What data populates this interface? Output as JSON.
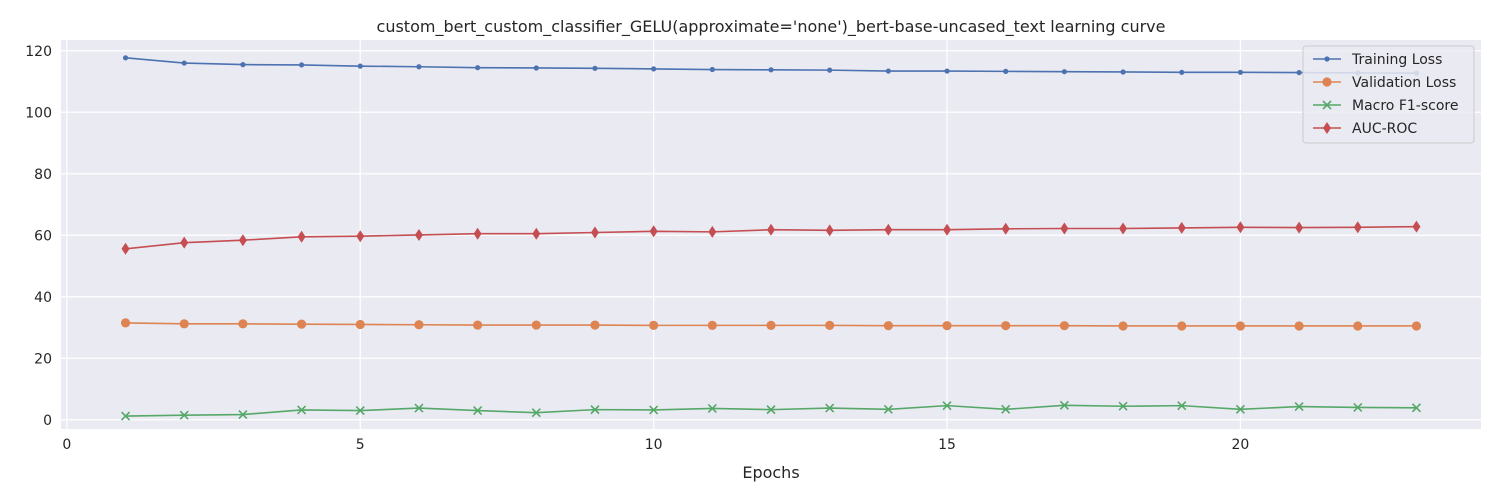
{
  "chart_data": {
    "type": "line",
    "title": "custom_bert_custom_classifier_GELU(approximate='none')_bert-base-uncased_text learning curve",
    "xlabel": "Epochs",
    "ylabel": "",
    "xlim": [
      -0.1,
      24.1
    ],
    "ylim": [
      -3,
      123.5
    ],
    "xticks": [
      0,
      5,
      10,
      15,
      20
    ],
    "yticks": [
      0,
      20,
      40,
      60,
      80,
      100,
      120
    ],
    "grid": true,
    "legend_position": "top-right",
    "x": [
      1,
      2,
      3,
      4,
      5,
      6,
      7,
      8,
      9,
      10,
      11,
      12,
      13,
      14,
      15,
      16,
      17,
      18,
      19,
      20,
      21,
      22,
      23
    ],
    "series": [
      {
        "name": "Training Loss",
        "color": "#4c72b0",
        "marker": "dot",
        "values": [
          117.7,
          116.0,
          115.5,
          115.4,
          115.0,
          114.8,
          114.5,
          114.4,
          114.3,
          114.1,
          113.9,
          113.8,
          113.7,
          113.4,
          113.4,
          113.3,
          113.2,
          113.1,
          113.0,
          113.0,
          112.9,
          112.8,
          112.7
        ]
      },
      {
        "name": "Validation Loss",
        "color": "#dd8452",
        "marker": "circle",
        "values": [
          31.5,
          31.2,
          31.2,
          31.1,
          31.0,
          30.9,
          30.8,
          30.8,
          30.8,
          30.7,
          30.7,
          30.7,
          30.7,
          30.6,
          30.6,
          30.6,
          30.6,
          30.5,
          30.5,
          30.5,
          30.5,
          30.5,
          30.5
        ]
      },
      {
        "name": "Macro F1-score",
        "color": "#55a868",
        "marker": "x",
        "values": [
          1.2,
          1.5,
          1.7,
          3.2,
          3.0,
          3.8,
          3.0,
          2.3,
          3.3,
          3.2,
          3.7,
          3.3,
          3.8,
          3.4,
          4.6,
          3.4,
          4.7,
          4.4,
          4.6,
          3.4,
          4.3,
          4.0,
          3.9
        ]
      },
      {
        "name": "AUC-ROC",
        "color": "#c44e52",
        "marker": "diamond",
        "values": [
          55.6,
          57.6,
          58.4,
          59.5,
          59.7,
          60.1,
          60.5,
          60.5,
          60.9,
          61.3,
          61.1,
          61.8,
          61.6,
          61.8,
          61.8,
          62.1,
          62.2,
          62.2,
          62.4,
          62.6,
          62.5,
          62.6,
          62.8
        ]
      }
    ]
  }
}
